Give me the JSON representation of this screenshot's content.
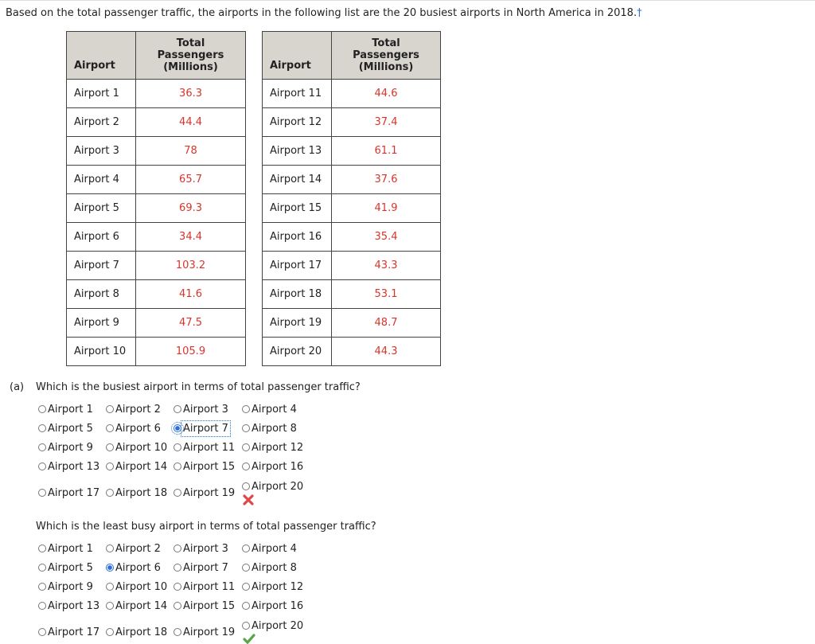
{
  "intro": "Based on the total passenger traffic, the airports in the following list are the 20 busiest airports in North America in 2018.",
  "intro_mark": "†",
  "table": {
    "headers": [
      [
        "Airport"
      ],
      [
        "Total Passengers",
        "(Millions)"
      ],
      [
        "Airport"
      ],
      [
        "Total Passengers",
        "(Millions)"
      ]
    ],
    "rows": [
      [
        "Airport 1",
        36.3,
        "Airport 11",
        44.6
      ],
      [
        "Airport 2",
        44.4,
        "Airport 12",
        37.4
      ],
      [
        "Airport 3",
        78,
        "Airport 13",
        61.1
      ],
      [
        "Airport 4",
        65.7,
        "Airport 14",
        37.6
      ],
      [
        "Airport 5",
        69.3,
        "Airport 15",
        41.9
      ],
      [
        "Airport 6",
        34.4,
        "Airport 16",
        35.4
      ],
      [
        "Airport 7",
        103.2,
        "Airport 17",
        43.3
      ],
      [
        "Airport 8",
        41.6,
        "Airport 18",
        53.1
      ],
      [
        "Airport 9",
        47.5,
        "Airport 19",
        48.7
      ],
      [
        "Airport 10",
        105.9,
        "Airport 20",
        44.3
      ]
    ]
  },
  "questions": [
    {
      "label": "(a)",
      "text": "Which is the busiest airport in terms of total passenger traffic?",
      "options": [
        "Airport 1",
        "Airport 2",
        "Airport 3",
        "Airport 4",
        "Airport 5",
        "Airport 6",
        "Airport 7",
        "Airport 8",
        "Airport 9",
        "Airport 10",
        "Airport 11",
        "Airport 12",
        "Airport 13",
        "Airport 14",
        "Airport 15",
        "Airport 16",
        "Airport 17",
        "Airport 18",
        "Airport 19",
        "Airport 20"
      ],
      "selected": "Airport 7",
      "result": "incorrect"
    },
    {
      "text": "Which is the least busy airport in terms of total passenger traffic?",
      "options": [
        "Airport 1",
        "Airport 2",
        "Airport 3",
        "Airport 4",
        "Airport 5",
        "Airport 6",
        "Airport 7",
        "Airport 8",
        "Airport 9",
        "Airport 10",
        "Airport 11",
        "Airport 12",
        "Airport 13",
        "Airport 14",
        "Airport 15",
        "Airport 16",
        "Airport 17",
        "Airport 18",
        "Airport 19",
        "Airport 20"
      ],
      "selected": "Airport 6",
      "result": "correct"
    }
  ]
}
